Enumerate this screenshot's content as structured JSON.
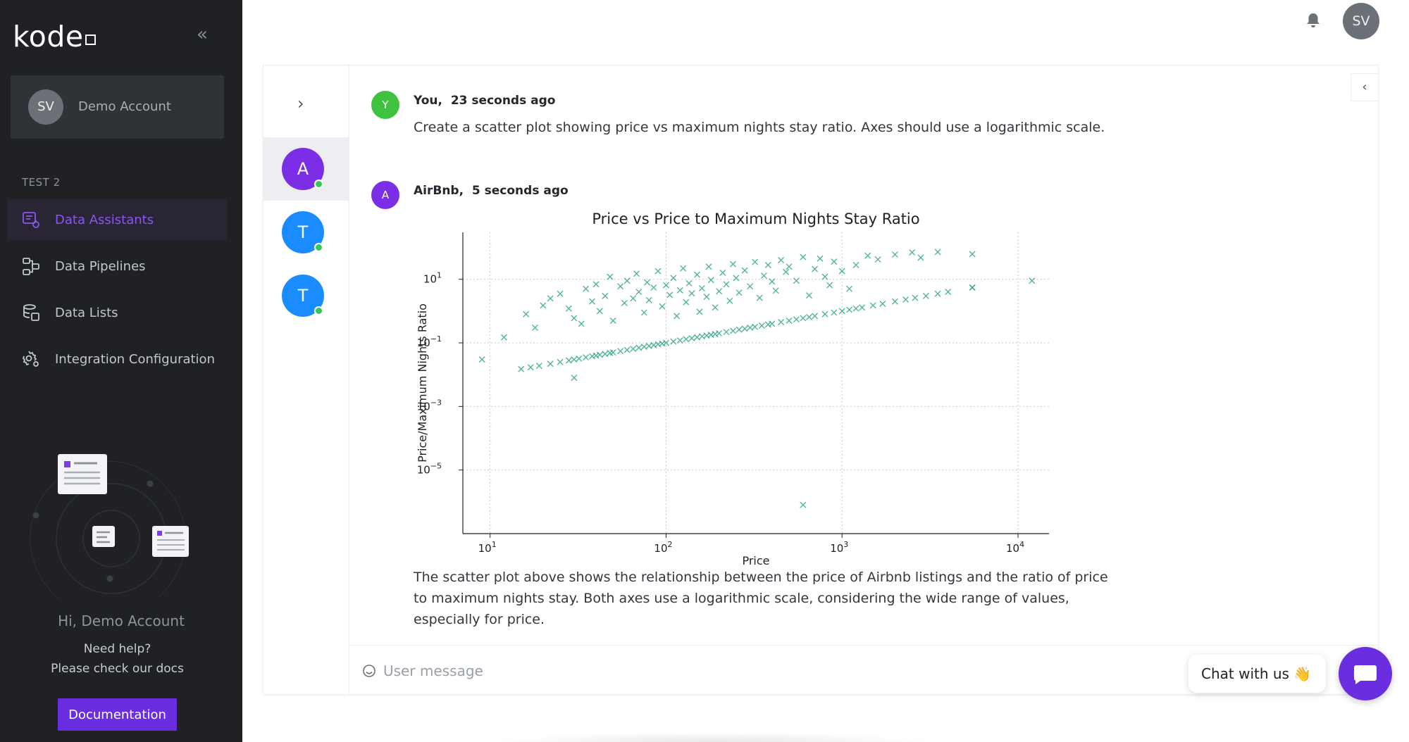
{
  "brand": {
    "logo_text": "kode"
  },
  "sidebar": {
    "account_initials": "SV",
    "account_name": "Demo Account",
    "section_label": "TEST 2",
    "items": [
      {
        "label": "Data Assistants",
        "icon": "data-assistants-icon",
        "active": true
      },
      {
        "label": "Data Pipelines",
        "icon": "data-pipelines-icon",
        "active": false
      },
      {
        "label": "Data Lists",
        "icon": "data-lists-icon",
        "active": false
      },
      {
        "label": "Integration Configuration",
        "icon": "integration-config-icon",
        "active": false
      }
    ],
    "greeting": "Hi, Demo Account",
    "help_line1": "Need help?",
    "help_line2": "Please check our docs",
    "docs_button": "Documentation"
  },
  "topbar": {
    "user_initials": "SV",
    "bell_icon": "bell-icon"
  },
  "conversations": [
    {
      "initial": "A",
      "color": "#7b2ee6",
      "online": true,
      "active": true
    },
    {
      "initial": "T",
      "color": "#1a8cff",
      "online": true,
      "active": false
    },
    {
      "initial": "T",
      "color": "#1a8cff",
      "online": true,
      "active": false
    }
  ],
  "messages": [
    {
      "author": "You,",
      "time": "23 seconds ago",
      "avatar_initial": "Y",
      "avatar_color": "#3fc23f",
      "text": "Create a scatter plot showing price vs maximum nights stay ratio. Axes should use a logarithmic scale."
    },
    {
      "author": "AirBnb,",
      "time": "5 seconds ago",
      "avatar_initial": "A",
      "avatar_color": "#7b2ee6",
      "text_line1": "The scatter plot above shows the relationship between the price of Airbnb listings and the ratio of price",
      "text_line2": "to maximum nights stay. Both axes use a logarithmic scale, considering the wide range of values,",
      "text_line3": "especially for price."
    }
  ],
  "input": {
    "placeholder": "User message"
  },
  "chat_widget": {
    "label": "Chat with us",
    "emoji": "👋"
  },
  "chart_data": {
    "type": "scatter",
    "title": "Price vs Price to Maximum Nights Stay Ratio",
    "xlabel": "Price",
    "ylabel": "Price/Maximum Nights Ratio",
    "x_scale": "log",
    "y_scale": "log",
    "xlim": [
      7,
      15000
    ],
    "ylim": [
      1e-07,
      300
    ],
    "x_ticks": [
      {
        "value": 10,
        "label": "10^1"
      },
      {
        "value": 100,
        "label": "10^2"
      },
      {
        "value": 1000,
        "label": "10^3"
      },
      {
        "value": 10000,
        "label": "10^4"
      }
    ],
    "y_ticks": [
      {
        "value": 10,
        "label": "10^1"
      },
      {
        "value": 0.1,
        "label": "10^-1"
      },
      {
        "value": 0.001,
        "label": "10^-3"
      },
      {
        "value": 1e-05,
        "label": "10^-5"
      }
    ],
    "grid": true,
    "marker": "x",
    "color": "#1a9a7a",
    "series": [
      {
        "values": [
          [
            9,
            0.03
          ],
          [
            15,
            0.015
          ],
          [
            17,
            0.017
          ],
          [
            19,
            0.019
          ],
          [
            22,
            0.022
          ],
          [
            25,
            0.025
          ],
          [
            28,
            0.028
          ],
          [
            30,
            0.03
          ],
          [
            32,
            0.032
          ],
          [
            35,
            0.035
          ],
          [
            38,
            0.038
          ],
          [
            40,
            0.04
          ],
          [
            42,
            0.042
          ],
          [
            45,
            0.045
          ],
          [
            48,
            0.048
          ],
          [
            50,
            0.05
          ],
          [
            55,
            0.055
          ],
          [
            60,
            0.06
          ],
          [
            65,
            0.065
          ],
          [
            70,
            0.07
          ],
          [
            75,
            0.075
          ],
          [
            80,
            0.08
          ],
          [
            85,
            0.085
          ],
          [
            90,
            0.09
          ],
          [
            95,
            0.095
          ],
          [
            100,
            0.1
          ],
          [
            110,
            0.11
          ],
          [
            120,
            0.12
          ],
          [
            130,
            0.13
          ],
          [
            140,
            0.14
          ],
          [
            150,
            0.15
          ],
          [
            160,
            0.16
          ],
          [
            170,
            0.17
          ],
          [
            180,
            0.18
          ],
          [
            190,
            0.19
          ],
          [
            200,
            0.2
          ],
          [
            220,
            0.22
          ],
          [
            240,
            0.24
          ],
          [
            260,
            0.26
          ],
          [
            280,
            0.28
          ],
          [
            300,
            0.3
          ],
          [
            320,
            0.32
          ],
          [
            350,
            0.35
          ],
          [
            380,
            0.38
          ],
          [
            400,
            0.4
          ],
          [
            450,
            0.45
          ],
          [
            500,
            0.5
          ],
          [
            550,
            0.55
          ],
          [
            600,
            0.6
          ],
          [
            650,
            0.65
          ],
          [
            700,
            0.7
          ],
          [
            800,
            0.8
          ],
          [
            900,
            0.9
          ],
          [
            1000,
            1.0
          ],
          [
            1100,
            1.1
          ],
          [
            1200,
            1.2
          ],
          [
            1300,
            1.3
          ],
          [
            1500,
            1.5
          ],
          [
            1700,
            1.7
          ],
          [
            2000,
            2.0
          ],
          [
            2300,
            2.3
          ],
          [
            2600,
            2.6
          ],
          [
            3000,
            3.0
          ],
          [
            3500,
            3.5
          ],
          [
            4000,
            4.0
          ],
          [
            5500,
            5.5
          ],
          [
            12,
            0.15
          ],
          [
            16,
            0.8
          ],
          [
            18,
            0.3
          ],
          [
            20,
            1.5
          ],
          [
            22,
            2.5
          ],
          [
            25,
            3.5
          ],
          [
            28,
            1.2
          ],
          [
            30,
            0.6
          ],
          [
            33,
            0.4
          ],
          [
            35,
            5.0
          ],
          [
            38,
            2.0
          ],
          [
            40,
            7.0
          ],
          [
            42,
            1.0
          ],
          [
            45,
            3.0
          ],
          [
            48,
            12.0
          ],
          [
            50,
            0.5
          ],
          [
            55,
            6.0
          ],
          [
            58,
            1.8
          ],
          [
            60,
            9.0
          ],
          [
            65,
            2.5
          ],
          [
            68,
            15.0
          ],
          [
            70,
            4.0
          ],
          [
            75,
            0.9
          ],
          [
            78,
            8.0
          ],
          [
            80,
            2.2
          ],
          [
            85,
            5.5
          ],
          [
            90,
            18.0
          ],
          [
            95,
            1.4
          ],
          [
            100,
            6.5
          ],
          [
            105,
            3.2
          ],
          [
            110,
            11.0
          ],
          [
            115,
            0.7
          ],
          [
            120,
            4.5
          ],
          [
            125,
            22.0
          ],
          [
            130,
            1.9
          ],
          [
            135,
            7.5
          ],
          [
            140,
            3.6
          ],
          [
            150,
            14.0
          ],
          [
            155,
            0.95
          ],
          [
            160,
            5.2
          ],
          [
            170,
            2.8
          ],
          [
            175,
            25.0
          ],
          [
            180,
            9.5
          ],
          [
            190,
            1.3
          ],
          [
            200,
            4.2
          ],
          [
            210,
            16.0
          ],
          [
            220,
            7.0
          ],
          [
            230,
            2.1
          ],
          [
            240,
            30.0
          ],
          [
            250,
            11.0
          ],
          [
            260,
            3.8
          ],
          [
            280,
            19.0
          ],
          [
            300,
            6.0
          ],
          [
            320,
            35.0
          ],
          [
            340,
            2.6
          ],
          [
            360,
            13.0
          ],
          [
            380,
            28.0
          ],
          [
            400,
            8.5
          ],
          [
            420,
            4.4
          ],
          [
            450,
            40.0
          ],
          [
            480,
            17.0
          ],
          [
            500,
            25.0
          ],
          [
            550,
            9.0
          ],
          [
            600,
            50.0
          ],
          [
            650,
            3.1
          ],
          [
            700,
            21.0
          ],
          [
            750,
            45.0
          ],
          [
            800,
            12.0
          ],
          [
            850,
            6.5
          ],
          [
            900,
            36.0
          ],
          [
            1000,
            18.0
          ],
          [
            1100,
            5.0
          ],
          [
            1200,
            28.0
          ],
          [
            1400,
            55.0
          ],
          [
            1600,
            42.0
          ],
          [
            2000,
            60.0
          ],
          [
            2500,
            70.0
          ],
          [
            2800,
            48.0
          ],
          [
            3500,
            72.0
          ],
          [
            5500,
            62.0
          ],
          [
            5500,
            5.5
          ],
          [
            12000,
            9.0
          ],
          [
            30,
            0.008
          ],
          [
            600,
            8e-07
          ]
        ]
      }
    ]
  }
}
